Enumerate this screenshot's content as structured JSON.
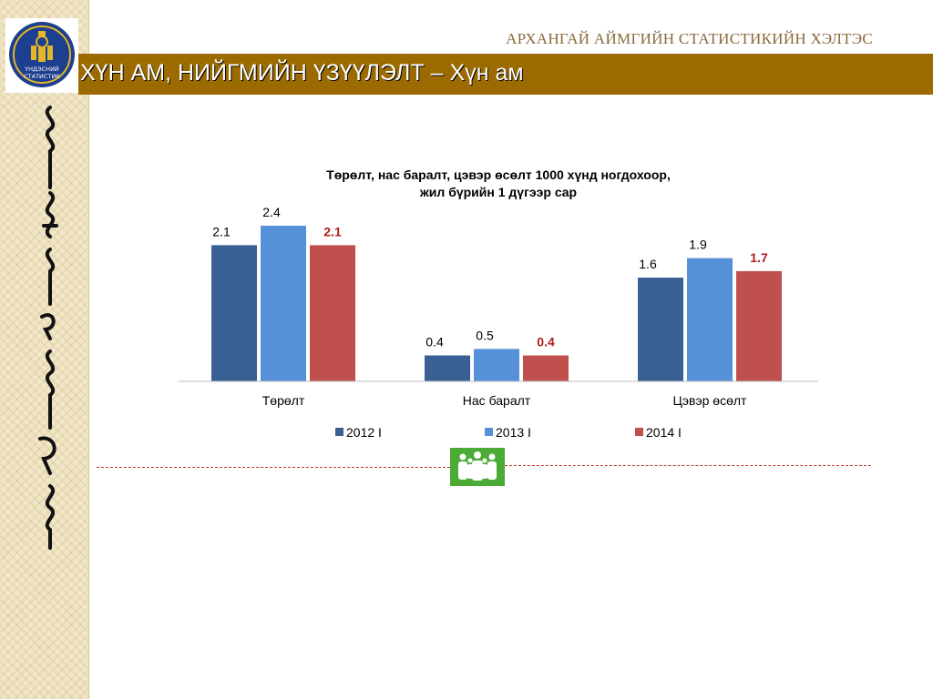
{
  "header": {
    "org_name": "АРХАНГАЙ АЙМГИЙН СТАТИСТИКИЙН ХЭЛТЭС",
    "title": "ХҮН АМ, НИЙГМИЙН ҮЗҮҮЛЭЛТ – Хүн ам"
  },
  "logo": {
    "text_line1": "ҮНДЭСНИЙ",
    "text_line2": "СТАТИСТИК"
  },
  "colors": {
    "header_bar": "#9b6a00",
    "series_2012": "#3a5f93",
    "series_2013": "#5590d9",
    "series_2014": "#c0504d",
    "highlight_label": "#b01d1d",
    "people_icon_bg": "#4bab35"
  },
  "chart_data": {
    "type": "bar",
    "title_line1": "Төрөлт, нас баралт, цэвэр өсөлт 1000 хүнд ногдохоор,",
    "title_line2": "жил бүрийн 1 дүгээр сар",
    "categories": [
      "Төрөлт",
      "Нас баралт",
      "Цэвэр өсөлт"
    ],
    "series": [
      {
        "name": "2012 I",
        "values": [
          2.1,
          0.4,
          1.6
        ]
      },
      {
        "name": "2013 I",
        "values": [
          2.4,
          0.5,
          1.9
        ]
      },
      {
        "name": "2014 I",
        "values": [
          2.1,
          0.4,
          1.7
        ]
      }
    ],
    "value_labels": [
      [
        "2.1",
        "0.4",
        "1.6"
      ],
      [
        "2.4",
        "0.5",
        "1.9"
      ],
      [
        "2.1",
        "0.4",
        "1.7"
      ]
    ],
    "xlabel": "",
    "ylabel": "",
    "ylim": [
      0,
      2.4
    ],
    "grid": false,
    "legend_position": "bottom"
  }
}
